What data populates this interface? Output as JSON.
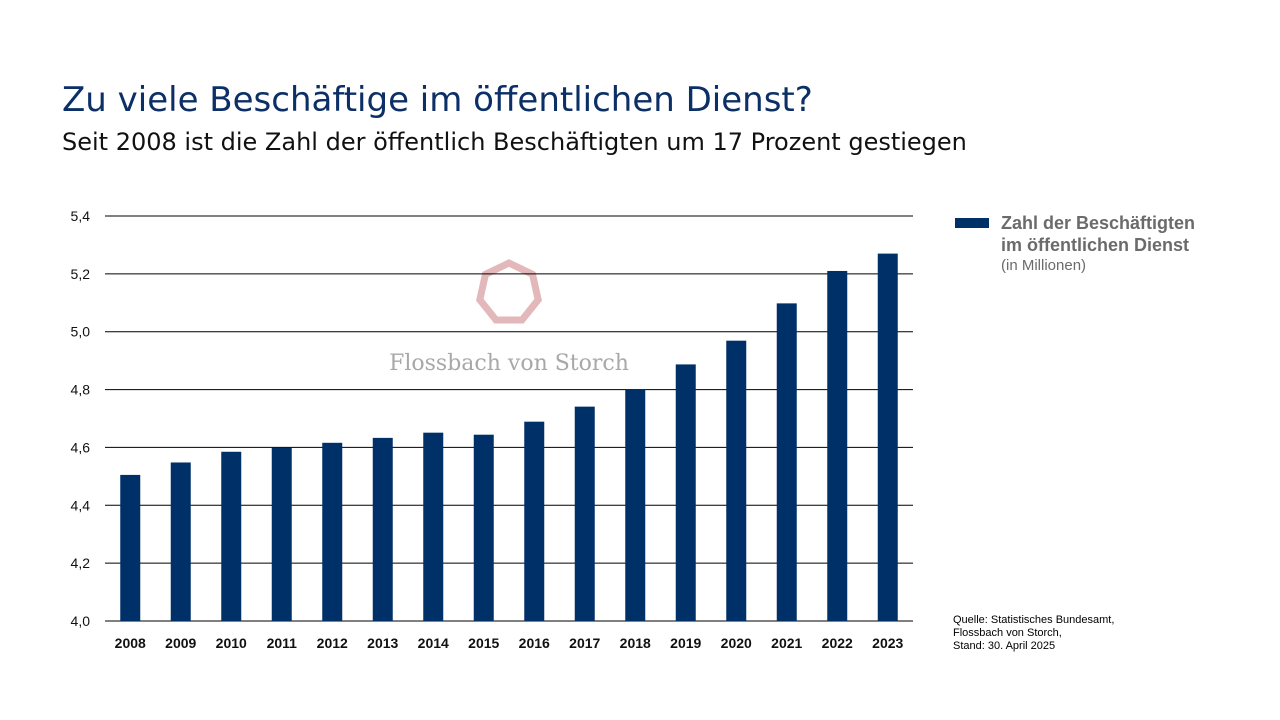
{
  "header": {
    "title": "Zu viele Beschäftige im öffentlichen Dienst?",
    "subtitle": "Seit 2008 ist die Zahl der öffentlich Beschäftigten um 17 Prozent gestiegen"
  },
  "legend": {
    "line1": "Zahl der Beschäftigten",
    "line2": "im öffentlichen Dienst",
    "unit": "(in Millionen)"
  },
  "source": {
    "line1": "Quelle: Statistisches Bundesamt,",
    "line2": "Flossbach von Storch,",
    "line3": "Stand: 30. April 2025"
  },
  "watermark": {
    "text": "Flossbach von Storch",
    "icon": "heptagon-logo-icon"
  },
  "colors": {
    "bar": "#003068",
    "title": "#0b2f66",
    "grid": "#000000",
    "watermark": "#d9a0a3"
  },
  "chart_data": {
    "type": "bar",
    "categories": [
      "2008",
      "2009",
      "2010",
      "2011",
      "2012",
      "2013",
      "2014",
      "2015",
      "2016",
      "2017",
      "2018",
      "2019",
      "2020",
      "2021",
      "2022",
      "2023"
    ],
    "series": [
      {
        "name": "Zahl der Beschäftigten im öffentlichen Dienst",
        "values": [
          4.505,
          4.548,
          4.585,
          4.6,
          4.616,
          4.633,
          4.651,
          4.644,
          4.689,
          4.741,
          4.802,
          4.887,
          4.969,
          5.098,
          5.21,
          5.27
        ]
      }
    ],
    "ylim": [
      4.0,
      5.4
    ],
    "yticks": [
      "4,0",
      "4,2",
      "4,4",
      "4,6",
      "4,8",
      "5,0",
      "5,2",
      "5,4"
    ],
    "ytick_values": [
      4.0,
      4.2,
      4.4,
      4.6,
      4.8,
      5.0,
      5.2,
      5.4
    ],
    "grid": true,
    "legend_position": "right"
  }
}
